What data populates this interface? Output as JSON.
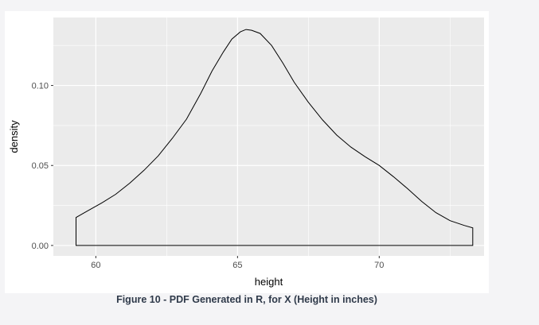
{
  "caption": "Figure 10 - PDF Generated in R, for X (Height in inches)",
  "chart_data": {
    "type": "area",
    "title": "",
    "xlabel": "height",
    "ylabel": "density",
    "xlim": [
      58.5,
      73.7
    ],
    "ylim": [
      -0.0065,
      0.1425
    ],
    "x_ticks": [
      60,
      65,
      70
    ],
    "x_tick_labels": [
      "60",
      "65",
      "70"
    ],
    "y_ticks": [
      0,
      0.05,
      0.1
    ],
    "y_tick_labels": [
      "0.00",
      "0.05",
      "0.10"
    ],
    "grid": true,
    "legend": "none",
    "colors": {
      "panel_background": "#EBEBEB",
      "grid_line": "#FFFFFF",
      "curve": "#000000",
      "fill": "none"
    },
    "series": [
      {
        "x": [
          59.3,
          59.7,
          60.2,
          60.7,
          61.2,
          61.7,
          62.2,
          62.7,
          63.2,
          63.7,
          64.1,
          64.5,
          64.8,
          65.1,
          65.3,
          65.5,
          65.8,
          66.2,
          66.6,
          67.0,
          67.5,
          68.0,
          68.5,
          69.0,
          69.5,
          70.0,
          70.5,
          71.0,
          71.5,
          72.0,
          72.5,
          73.0,
          73.3
        ],
        "y": [
          0.0175,
          0.0215,
          0.0265,
          0.032,
          0.039,
          0.047,
          0.056,
          0.067,
          0.079,
          0.095,
          0.109,
          0.121,
          0.129,
          0.1335,
          0.135,
          0.1345,
          0.1325,
          0.125,
          0.114,
          0.102,
          0.0895,
          0.0785,
          0.069,
          0.0615,
          0.0555,
          0.05,
          0.043,
          0.0355,
          0.0275,
          0.0205,
          0.0155,
          0.0125,
          0.011
        ]
      }
    ]
  }
}
